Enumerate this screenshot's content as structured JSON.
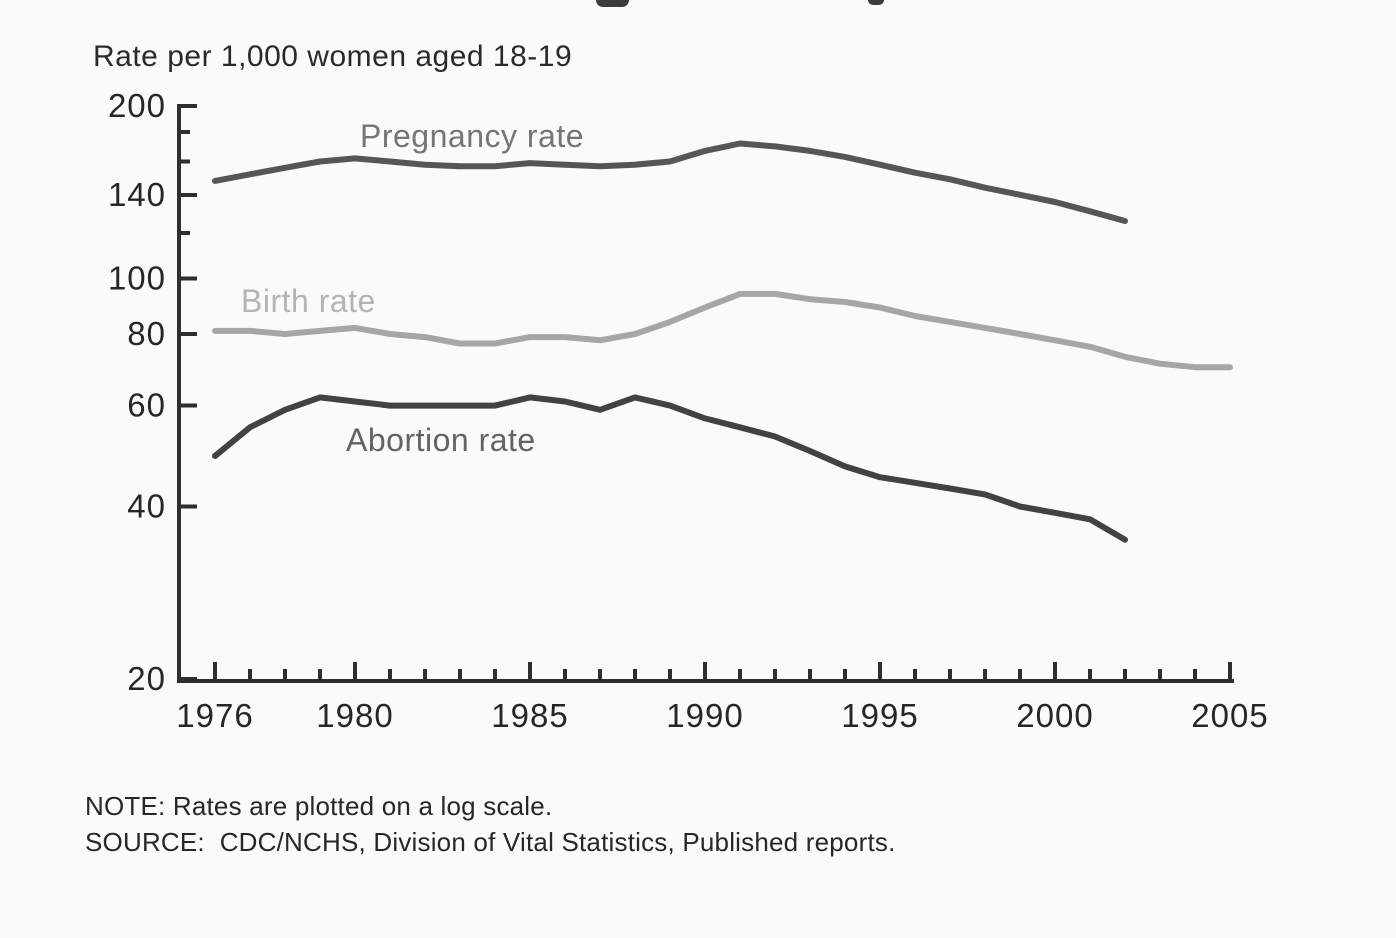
{
  "chart_data": {
    "type": "line",
    "unit_label": "Rate per 1,000 women aged 18-19",
    "y_scale": "log",
    "axis_color": "#2e2e2e",
    "text_color": "#262626",
    "x_axis": {
      "range": [
        1976,
        2005
      ],
      "ticks_labeled": [
        1976,
        1980,
        1985,
        1990,
        1995,
        2000,
        2005
      ],
      "tick_every_years": 1
    },
    "y_axis": {
      "range": [
        20,
        200
      ],
      "ticks_labeled": [
        20,
        40,
        60,
        80,
        100,
        140,
        200
      ],
      "ticks_minor": [
        120,
        160,
        180
      ]
    },
    "series": [
      {
        "id": "pregnancy-rate",
        "name": "Pregnancy rate",
        "color": "#565656",
        "label_color": "#757575",
        "x_start": 1976,
        "x_end": 2002,
        "values": [
          148,
          152,
          156,
          160,
          162,
          160,
          158,
          157,
          157,
          159,
          158,
          157,
          158,
          160,
          167,
          172,
          170,
          167,
          163,
          158,
          153,
          149,
          144,
          140,
          136,
          131,
          126
        ]
      },
      {
        "id": "birth-rate",
        "name": "Birth rate",
        "color": "#a6a6a6",
        "label_color": "#b4b4b4",
        "x_start": 1976,
        "x_end": 2005,
        "values": [
          81,
          81,
          80,
          81,
          82,
          80,
          79,
          77,
          77,
          79,
          79,
          78,
          80,
          84,
          89,
          94,
          94,
          92,
          91,
          89,
          86,
          84,
          82,
          80,
          78,
          76,
          73,
          71,
          70,
          70
        ]
      },
      {
        "id": "abortion-rate",
        "name": "Abortion rate",
        "color": "#424242",
        "label_color": "#636363",
        "x_start": 1976,
        "x_end": 2002,
        "values": [
          49,
          55,
          59,
          62,
          61,
          60,
          60,
          60,
          60,
          62,
          61,
          59,
          62,
          60,
          57,
          55,
          53,
          50,
          47,
          45,
          44,
          43,
          42,
          40,
          39,
          38,
          35
        ]
      }
    ]
  },
  "footnotes": {
    "note": "NOTE: Rates are plotted on a log scale.",
    "source": "SOURCE:  CDC/NCHS, Division of Vital Statistics, Published reports."
  }
}
